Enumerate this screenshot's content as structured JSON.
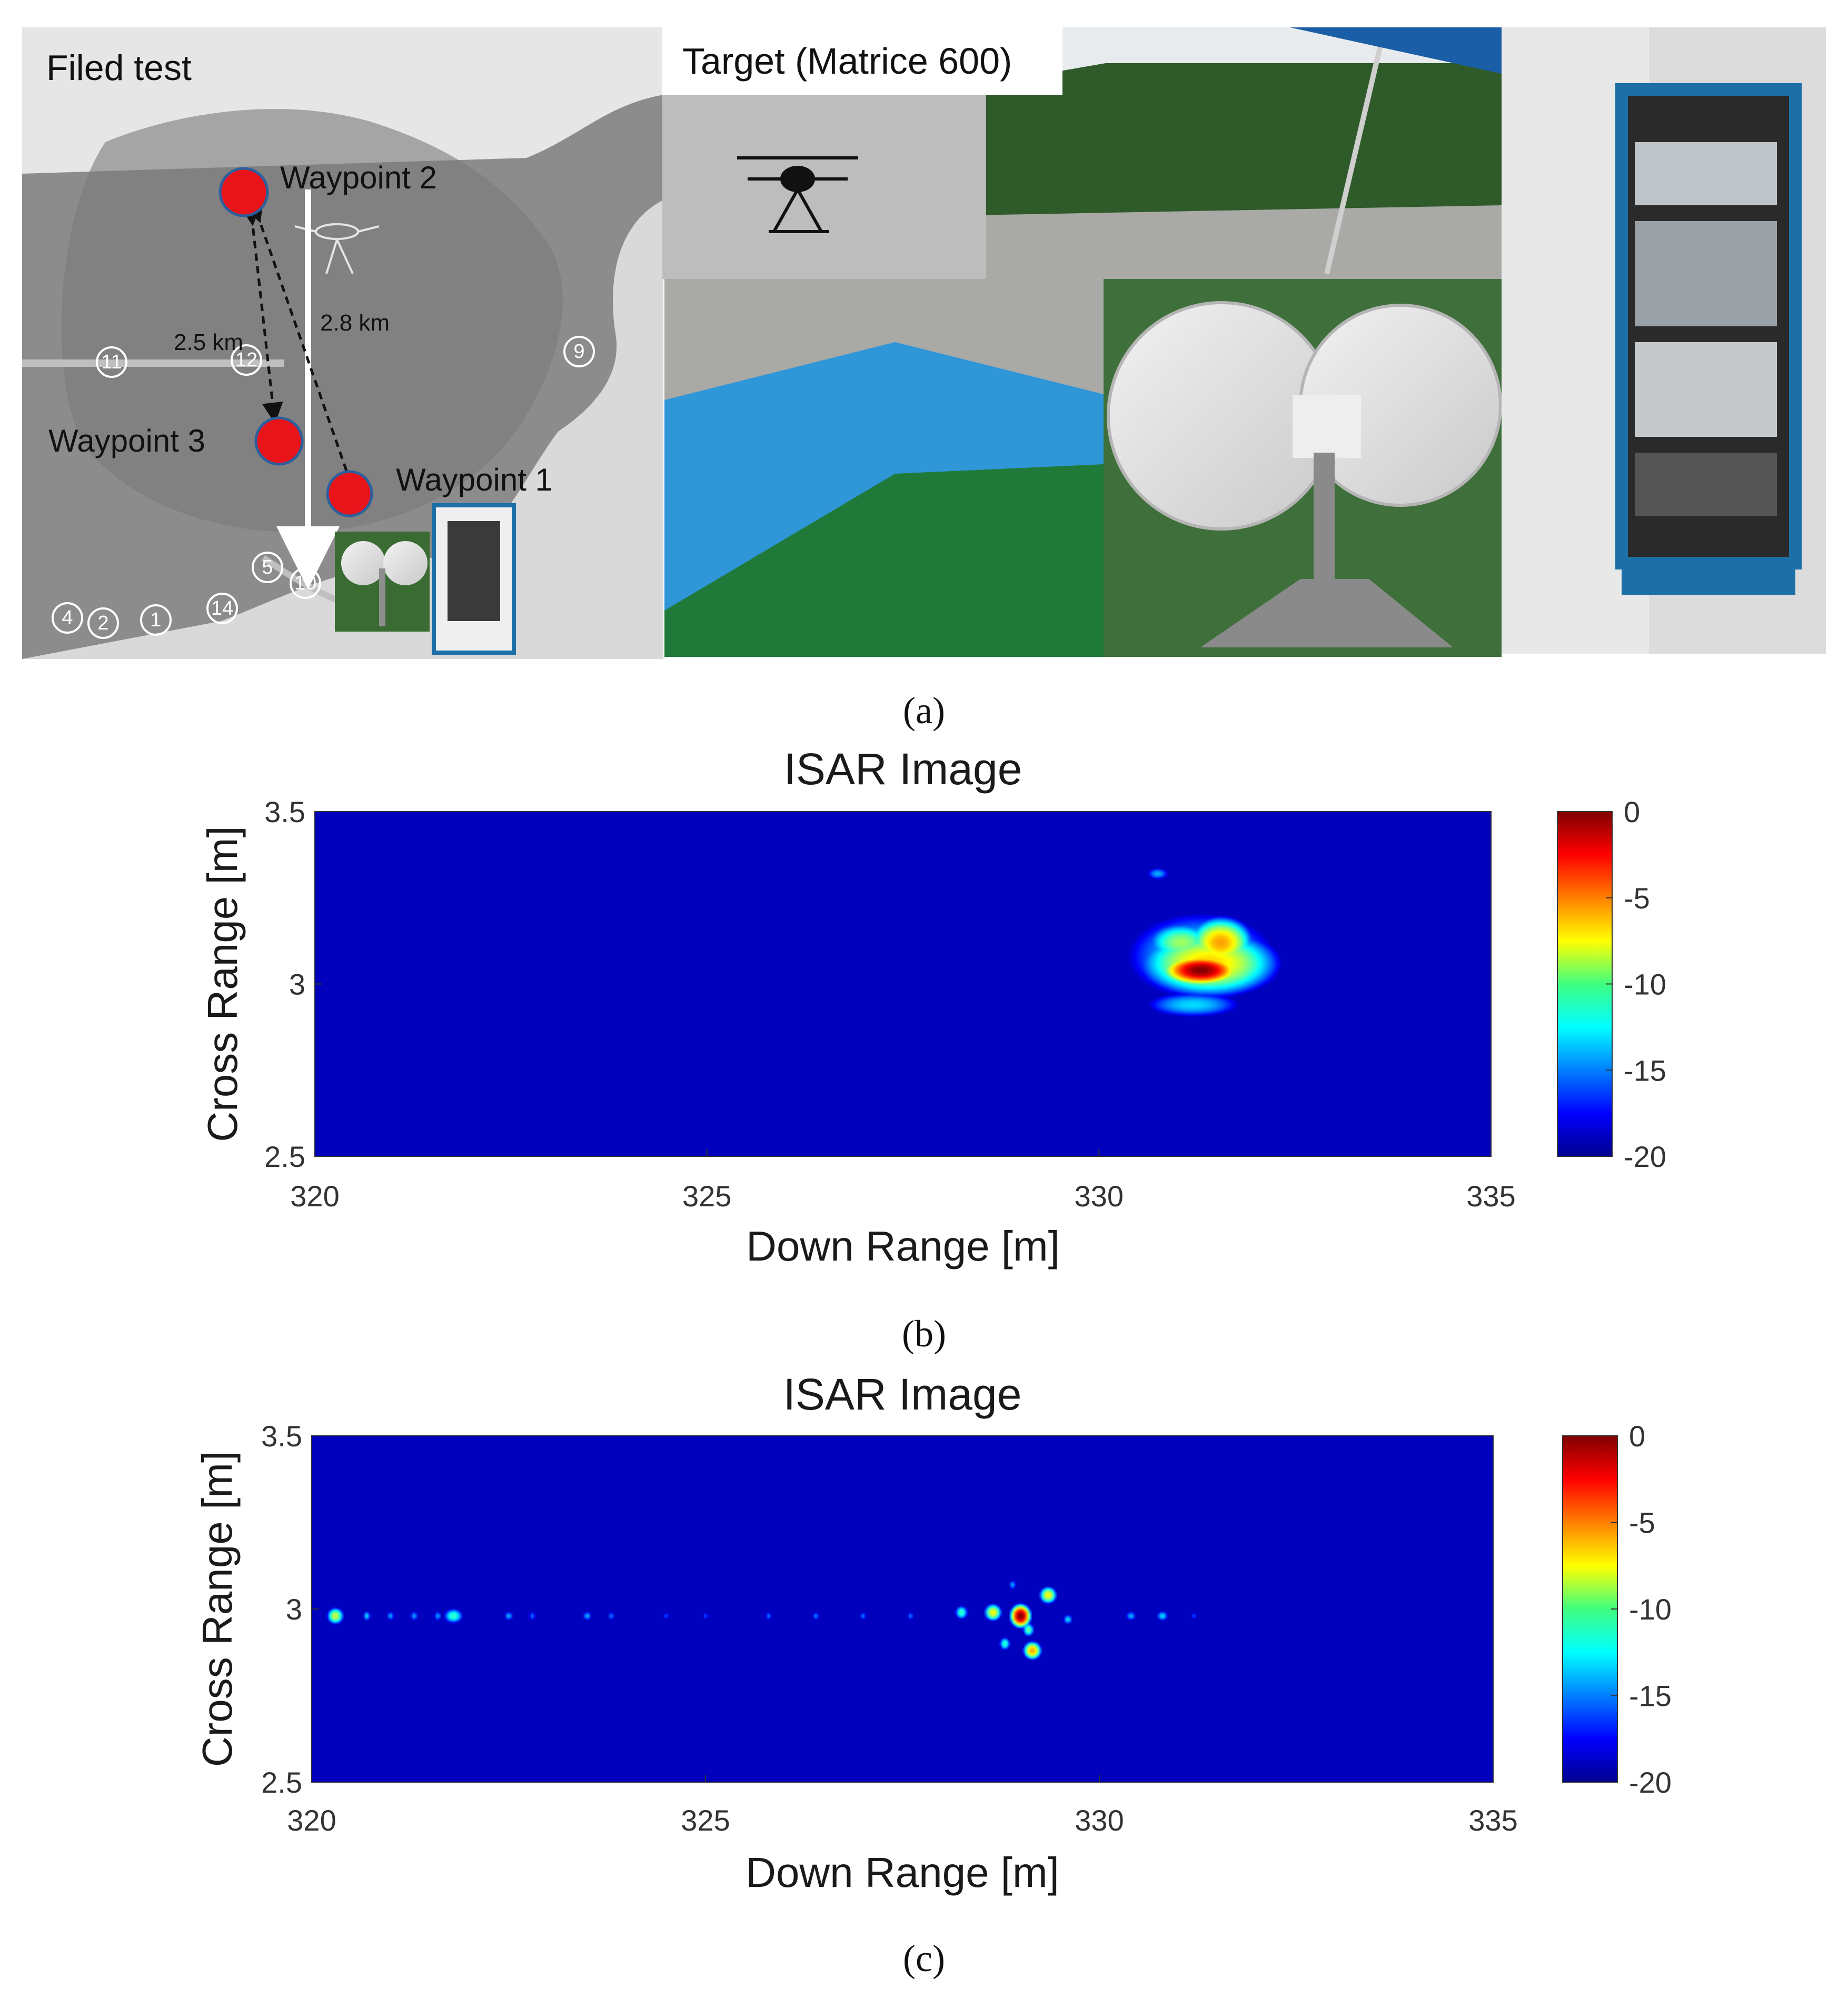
{
  "panel_a": {
    "map": {
      "title": "Filed test",
      "waypoints": [
        "Waypoint 2",
        "Waypoint 3",
        "Waypoint 1"
      ],
      "distances": [
        "2.5 km",
        "2.8 km"
      ],
      "marker_color": "#e8141a",
      "map_labels": [
        "11",
        "12",
        "9",
        "5",
        "10",
        "14",
        "4",
        "2",
        "1"
      ]
    },
    "target_label": "Target (Matrice 600)",
    "caption": "(a)"
  },
  "chart_data": [
    {
      "type": "heatmap",
      "title": "ISAR Image",
      "xlabel": "Down Range [m]",
      "ylabel": "Cross Range [m]",
      "xlim": [
        320,
        335
      ],
      "ylim": [
        2.5,
        3.5
      ],
      "xticks": [
        "320",
        "325",
        "330",
        "335"
      ],
      "yticks": [
        "2.5",
        "3",
        "3.5"
      ],
      "colorbar": {
        "range": [
          -20,
          0
        ],
        "ticks": [
          "0",
          "-5",
          "-10",
          "-15",
          "-20"
        ],
        "colormap": "jet"
      },
      "background_db": -20,
      "blobs": [
        {
          "x": 331.3,
          "y": 3.04,
          "sx": 0.28,
          "sy": 0.025,
          "db": 0
        },
        {
          "x": 331.4,
          "y": 3.06,
          "sx": 0.55,
          "sy": 0.06,
          "db": -7
        },
        {
          "x": 331.55,
          "y": 3.12,
          "sx": 0.25,
          "sy": 0.045,
          "db": -6
        },
        {
          "x": 331.05,
          "y": 3.12,
          "sx": 0.3,
          "sy": 0.04,
          "db": -10
        },
        {
          "x": 331.3,
          "y": 3.08,
          "sx": 0.75,
          "sy": 0.1,
          "db": -13
        },
        {
          "x": 330.75,
          "y": 3.32,
          "sx": 0.12,
          "sy": 0.015,
          "db": -15
        },
        {
          "x": 331.2,
          "y": 2.94,
          "sx": 0.5,
          "sy": 0.03,
          "db": -14
        }
      ],
      "caption": "(b)"
    },
    {
      "type": "heatmap",
      "title": "ISAR Image",
      "xlabel": "Down Range [m]",
      "ylabel": "Cross Range [m]",
      "xlim": [
        320,
        335
      ],
      "ylim": [
        2.5,
        3.5
      ],
      "xticks": [
        "320",
        "325",
        "330",
        "335"
      ],
      "yticks": [
        "2.5",
        "3",
        "3.5"
      ],
      "colorbar": {
        "range": [
          -20,
          0
        ],
        "ticks": [
          "0",
          "-5",
          "-10",
          "-15",
          "-20"
        ],
        "colormap": "jet"
      },
      "background_db": -20,
      "blobs": [
        {
          "x": 329.0,
          "y": 2.98,
          "sx": 0.07,
          "sy": 0.018,
          "db": 0
        },
        {
          "x": 329.15,
          "y": 2.88,
          "sx": 0.07,
          "sy": 0.016,
          "db": -6
        },
        {
          "x": 328.65,
          "y": 2.99,
          "sx": 0.07,
          "sy": 0.016,
          "db": -8
        },
        {
          "x": 329.35,
          "y": 3.04,
          "sx": 0.07,
          "sy": 0.016,
          "db": -8
        },
        {
          "x": 328.8,
          "y": 2.9,
          "sx": 0.05,
          "sy": 0.014,
          "db": -12
        },
        {
          "x": 329.1,
          "y": 2.94,
          "sx": 0.05,
          "sy": 0.014,
          "db": -11
        },
        {
          "x": 328.25,
          "y": 2.99,
          "sx": 0.06,
          "sy": 0.015,
          "db": -12
        },
        {
          "x": 329.6,
          "y": 2.97,
          "sx": 0.05,
          "sy": 0.012,
          "db": -14
        },
        {
          "x": 328.9,
          "y": 3.07,
          "sx": 0.04,
          "sy": 0.012,
          "db": -15
        },
        {
          "x": 320.3,
          "y": 2.98,
          "sx": 0.07,
          "sy": 0.016,
          "db": -9
        },
        {
          "x": 321.8,
          "y": 2.98,
          "sx": 0.09,
          "sy": 0.016,
          "db": -12
        },
        {
          "x": 320.7,
          "y": 2.98,
          "sx": 0.04,
          "sy": 0.012,
          "db": -14
        },
        {
          "x": 321.0,
          "y": 2.98,
          "sx": 0.04,
          "sy": 0.012,
          "db": -15
        },
        {
          "x": 321.3,
          "y": 2.98,
          "sx": 0.04,
          "sy": 0.012,
          "db": -15
        },
        {
          "x": 321.6,
          "y": 2.98,
          "sx": 0.04,
          "sy": 0.012,
          "db": -15
        },
        {
          "x": 322.5,
          "y": 2.98,
          "sx": 0.05,
          "sy": 0.012,
          "db": -15
        },
        {
          "x": 322.8,
          "y": 2.98,
          "sx": 0.04,
          "sy": 0.012,
          "db": -16
        },
        {
          "x": 323.5,
          "y": 2.98,
          "sx": 0.05,
          "sy": 0.012,
          "db": -15
        },
        {
          "x": 323.8,
          "y": 2.98,
          "sx": 0.04,
          "sy": 0.012,
          "db": -16
        },
        {
          "x": 324.5,
          "y": 2.98,
          "sx": 0.04,
          "sy": 0.012,
          "db": -17
        },
        {
          "x": 325.0,
          "y": 2.98,
          "sx": 0.04,
          "sy": 0.012,
          "db": -17
        },
        {
          "x": 325.8,
          "y": 2.98,
          "sx": 0.04,
          "sy": 0.012,
          "db": -16
        },
        {
          "x": 326.4,
          "y": 2.98,
          "sx": 0.04,
          "sy": 0.012,
          "db": -16
        },
        {
          "x": 327.0,
          "y": 2.98,
          "sx": 0.04,
          "sy": 0.012,
          "db": -16
        },
        {
          "x": 327.6,
          "y": 2.98,
          "sx": 0.04,
          "sy": 0.012,
          "db": -16
        },
        {
          "x": 330.4,
          "y": 2.98,
          "sx": 0.06,
          "sy": 0.012,
          "db": -15
        },
        {
          "x": 330.8,
          "y": 2.98,
          "sx": 0.06,
          "sy": 0.012,
          "db": -14
        },
        {
          "x": 331.2,
          "y": 2.98,
          "sx": 0.04,
          "sy": 0.012,
          "db": -17
        }
      ],
      "caption": "(c)"
    }
  ]
}
